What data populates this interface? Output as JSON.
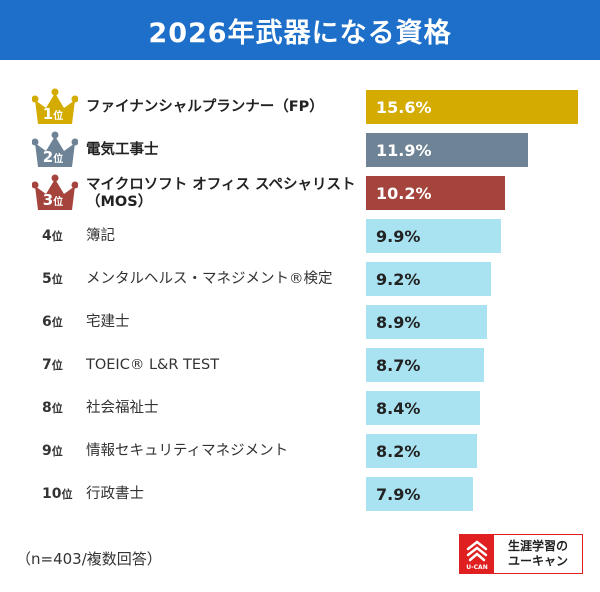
{
  "title": "2026年武器になる資格",
  "chart_data": {
    "type": "bar",
    "orientation": "horizontal",
    "title": "2026年武器になる資格",
    "categories": [
      "ファイナンシャルプランナー（FP）",
      "電気工事士",
      "マイクロソフト オフィス スペシャリスト（MOS）",
      "簿記",
      "メンタルヘルス・マネジメント®検定",
      "宅建士",
      "TOEIC® L&R TEST",
      "社会福祉士",
      "情報セキュリティマネジメント",
      "行政書士"
    ],
    "values": [
      15.6,
      11.9,
      10.2,
      9.9,
      9.2,
      8.9,
      8.7,
      8.4,
      8.2,
      7.9
    ],
    "value_labels": [
      "15.6%",
      "11.9%",
      "10.2%",
      "9.9%",
      "9.2%",
      "8.9%",
      "8.7%",
      "8.4%",
      "8.2%",
      "7.9%"
    ],
    "ranks": [
      "1",
      "2",
      "3",
      "4",
      "5",
      "6",
      "7",
      "8",
      "9",
      "10"
    ],
    "rank_suffix": "位",
    "unit": "%",
    "xlim": [
      0,
      15.6
    ]
  },
  "colors": {
    "header": "#1d6fc9",
    "gold": "#d4ab00",
    "silver": "#6e8496",
    "bronze": "#a4443d",
    "other": "#a9e3f1"
  },
  "note": "（n=403/複数回答）",
  "logo": {
    "line1": "生涯学習の",
    "line2": "ユーキャン",
    "small": "U-CAN"
  }
}
